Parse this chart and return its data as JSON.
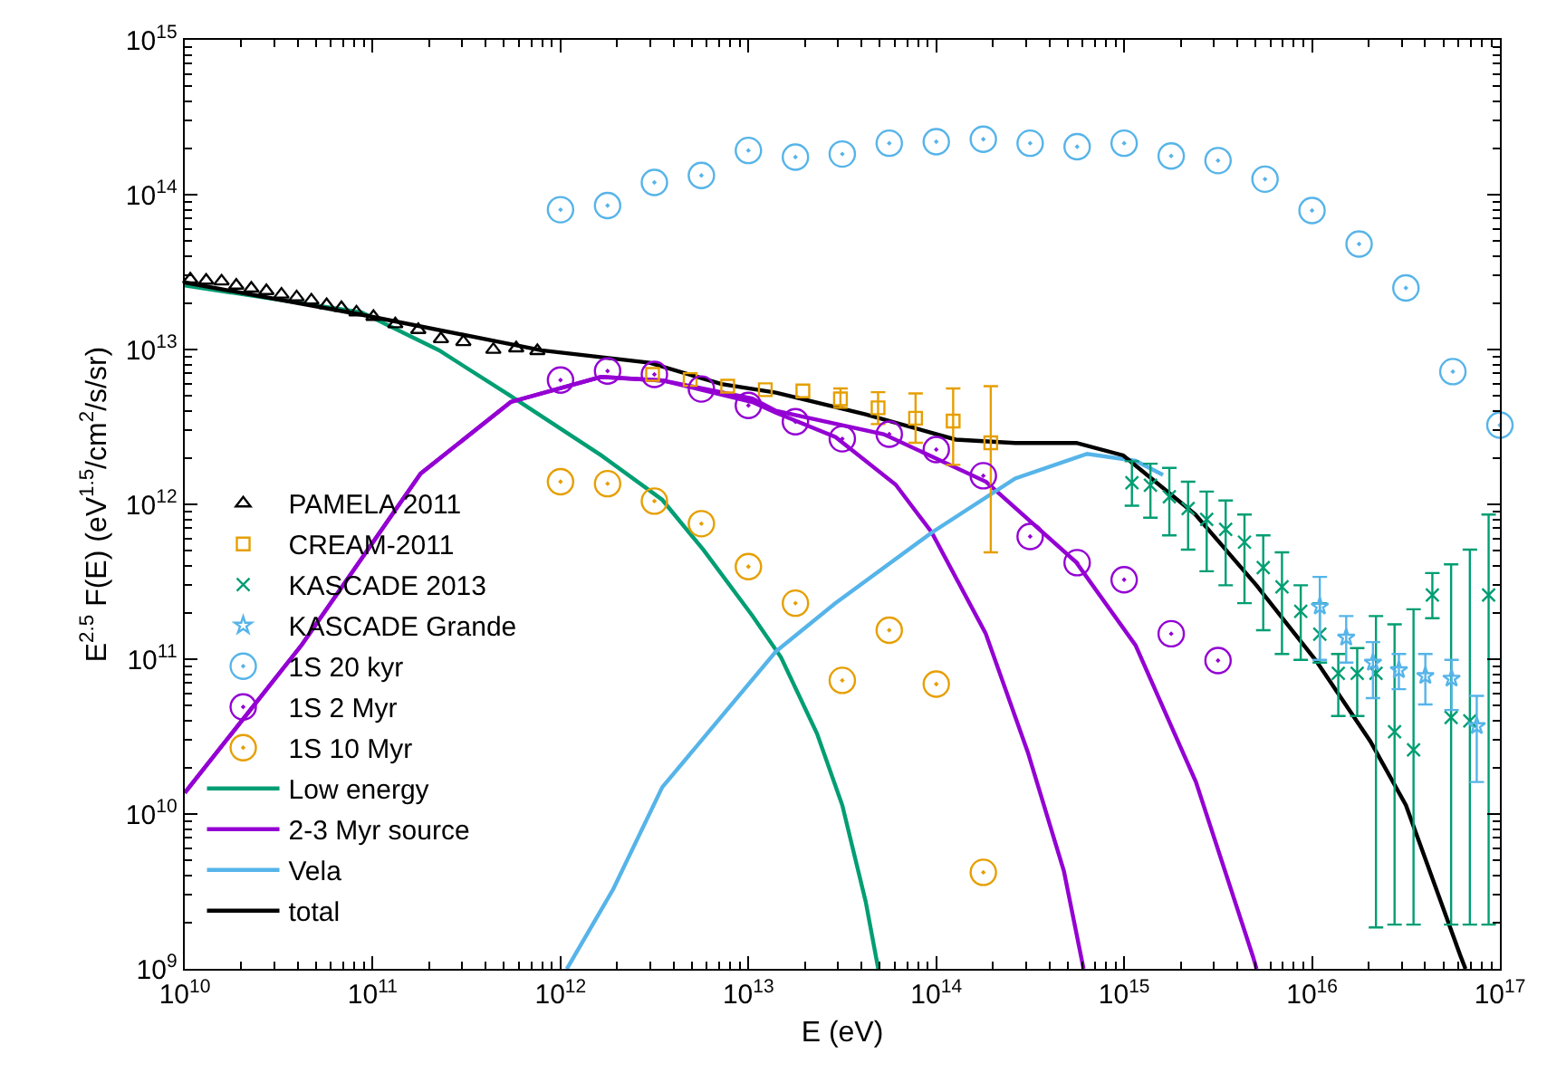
{
  "chart_data": {
    "type": "scatter",
    "xlabel": "E (eV)",
    "ylabel": "E$^{2.5}$ F(E) (eV$^{1.5}$/cm$^{2}$/s/sr)",
    "log": "xy",
    "grid": false,
    "legend": "bottom left",
    "xlim": [
      10000000000.0,
      1e+17
    ],
    "xticks": [
      {
        "value": 10000000000.0,
        "label": "10$^{10}$"
      },
      {
        "value": 100000000000.0,
        "label": "10$^{11}$"
      },
      {
        "value": 1000000000000.0,
        "label": "10$^{12}$"
      },
      {
        "value": 10000000000000.0,
        "label": "10$^{13}$"
      },
      {
        "value": 100000000000000.0,
        "label": "10$^{14}$"
      },
      {
        "value": 1000000000000000.0,
        "label": "10$^{15}$"
      },
      {
        "value": 1e+16,
        "label": "10$^{16}$"
      },
      {
        "value": 1e+17,
        "label": "10$^{17}$"
      }
    ],
    "ylim": [
      1000000000.0,
      1000000000000000.0
    ],
    "yticks": [
      {
        "value": 1000000000.0,
        "label": "10$^{9}$"
      },
      {
        "value": 10000000000.0,
        "label": "10$^{10}$"
      },
      {
        "value": 100000000000.0,
        "label": "10$^{11}$"
      },
      {
        "value": 1000000000000.0,
        "label": "10$^{12}$"
      },
      {
        "value": 10000000000000.0,
        "label": "10$^{13}$"
      },
      {
        "value": 100000000000000.0,
        "label": "10$^{14}$"
      },
      {
        "value": 1000000000000000.0,
        "label": "10$^{15}$"
      }
    ],
    "series": [
      {
        "type": "line",
        "name": "Low energy",
        "color": "#009e73",
        "marker": "none",
        "x": [
          10000000000.0,
          87100000000.0,
          225000000000.0,
          532000000000.0,
          1640000000000.0,
          3480000000000.0,
          5770000000000.0,
          10500000000000.0,
          14900000000000.0,
          23200000000000.0,
          31600000000000.0,
          42100000000000.0,
          49100000000000.0
        ],
        "values": [
          25900000000000.0,
          17400000000000.0,
          9900000000000.0,
          5090000000000.0,
          2080000000000.0,
          1070000000000.0,
          507000000000.0,
          191000000000.0,
          103000000000.0,
          33000000000.0,
          11400000000.0,
          2720000000.0,
          1000000000.0
        ]
      },
      {
        "type": "line",
        "name": "2-3 Myr source",
        "color": "#9400d3",
        "marker": "none",
        "x": [
          10000000000.0,
          42000000000.0,
          180000000000.0,
          543000000000.0,
          1640000000000.0,
          3480000000000.0,
          10500000000000.0,
          14000000000000.0,
          29100000000000.0,
          60800000000000.0,
          94400000000000.0,
          183000000000000.0,
          307000000000000.0,
          478000000000000.0,
          608000000000000.0
        ],
        "values": [
          13700000000.0,
          124000000000.0,
          1580000000000.0,
          4580000000000.0,
          6650000000000.0,
          6310000000000.0,
          4580000000000.0,
          3910000000000.0,
          2720000000000.0,
          1340000000000.0,
          661000000000.0,
          147000000000.0,
          25100000000.0,
          4280000000.0,
          1000000000.0
        ]
      },
      {
        "type": "line",
        "color": "#9400d3",
        "marker": "none",
        "x": [
          10000000000.0,
          42000000000.0,
          180000000000.0,
          543000000000.0,
          1640000000000.0,
          3480000000000.0,
          10500000000000.0,
          14000000000000.0,
          52500000000000.0,
          184000000000000.0,
          553000000000000.0,
          1150000000000000.0,
          2410000000000000.0,
          4850000000000000.0,
          5070000000000000.0
        ],
        "values": [
          13700000000.0,
          124000000000.0,
          1580000000000.0,
          4580000000000.0,
          6650000000000.0,
          6310000000000.0,
          4830000000000.0,
          4020000000000.0,
          2840000000000.0,
          1400000000000.0,
          425000000000.0,
          123000000000.0,
          16100000000.0,
          1200000000.0,
          1000000000.0
        ]
      },
      {
        "type": "line",
        "name": "Vela",
        "color": "#56b4e9",
        "marker": "none",
        "x": [
          1080000000000.0,
          1180000000000.0,
          1910000000000.0,
          3480000000000.0,
          14000000000000.0,
          28900000000000.0,
          95300000000000.0,
          263000000000000.0,
          635000000000000.0,
          1150000000000000.0,
          1610000000000000.0
        ],
        "values": [
          1000000000.0,
          1200000000.0,
          3280000000.0,
          14900000000.0,
          112000000000.0,
          229000000000.0,
          661000000000.0,
          1470000000000.0,
          2120000000000.0,
          1910000000000.0,
          1550000000000.0
        ]
      },
      {
        "type": "line",
        "name": "total",
        "color": "#000000",
        "marker": "none",
        "x": [
          10000000000.0,
          87100000000.0,
          791000000000.0,
          2980000000000.0,
          7190000000000.0,
          14000000000000.0,
          42100000000000.0,
          127000000000000.0,
          263000000000000.0,
          557000000000000.0,
          989000000000000.0,
          2390000000000000.0,
          5070000000000000.0,
          1.05e+16,
          2.04e+16,
          3.16e+16,
          6.14e+16,
          6.56e+16
        ],
        "values": [
          27100000000000.0,
          16800000000000.0,
          9890000000000.0,
          8220000000000.0,
          5980000000000.0,
          5270000000000.0,
          3810000000000.0,
          2620000000000.0,
          2490000000000.0,
          2490000000000.0,
          2070000000000.0,
          861000000000.0,
          299000000000.0,
          97900000000.0,
          29600000000.0,
          11400000000.0,
          1230000000.0,
          1000000000.0
        ]
      },
      {
        "name": "PAMELA 2011",
        "color": "#000000",
        "marker": "triangle",
        "x": [
          10700000000.0,
          13000000000.0,
          15700000000.0,
          18800000000.0,
          22600000000.0,
          27200000000.0,
          32700000000.0,
          39400000000.0,
          47200000000.0,
          56900000000.0,
          68200000000.0,
          82000000000.0,
          101000000000.0,
          132000000000.0,
          175000000000.0,
          231000000000.0,
          304000000000.0,
          439000000000.0,
          581000000000.0,
          753000000000.0
        ],
        "values": [
          28400000000000.0,
          27900000000000.0,
          27600000000000.0,
          25900000000000.0,
          24800000000000.0,
          23900000000000.0,
          22700000000000.0,
          21800000000000.0,
          20800000000000.0,
          19400000000000.0,
          18600000000000.0,
          17400000000000.0,
          16300000000000.0,
          14600000000000.0,
          13400000000000.0,
          11700000000000.0,
          11200000000000.0,
          9980000000000.0,
          10200000000000.0,
          9800000000000.0
        ]
      },
      {
        "name": "CREAM-2011",
        "color": "#e69f00",
        "marker": "square",
        "x": [
          3090000000000.0,
          4900000000000.0,
          7760000000000.0,
          12300000000000.0,
          19500000000000.0,
          30900000000000.0,
          49000000000000.0,
          77600000000000.0,
          123000000000000.0,
          195000000000000.0
        ],
        "values": [
          6900000000000.0,
          6400000000000.0,
          5800000000000.0,
          5500000000000.0,
          5400000000000.0,
          4800000000000.0,
          4200000000000.0,
          3600000000000.0,
          3450000000000.0,
          2500000000000.0
        ],
        "errors": [
          null,
          null,
          null,
          null,
          null,
          [
            4200000000000.0,
            5600000000000.0
          ],
          [
            3300000000000.0,
            5300000000000.0
          ],
          [
            2500000000000.0,
            5200000000000.0
          ],
          [
            1800000000000.0,
            5600000000000.0
          ],
          [
            490000000000.0,
            5800000000000.0
          ]
        ]
      },
      {
        "name": "KASCADE 2013",
        "color": "#009e73",
        "marker": "cross",
        "x": [
          1100000000000000.0,
          1380000000000000.0,
          1740000000000000.0,
          2190000000000000.0,
          2750000000000000.0,
          3470000000000000.0,
          4370000000000000.0,
          5500000000000000.0,
          6920000000000000.0,
          8710000000000000.0,
          1.1e+16,
          1.38e+16,
          1.74e+16,
          2.19e+16,
          2.75e+16,
          3.47e+16,
          4.37e+16,
          5.5e+16,
          6.92e+16,
          8.71e+16
        ],
        "values": [
          1380000000000.0,
          1330000000000.0,
          1120000000000.0,
          940000000000.0,
          800000000000.0,
          690000000000.0,
          570000000000.0,
          390000000000.0,
          293000000000.0,
          204000000000.0,
          145000000000.0,
          81000000000.0,
          81000000000.0,
          81000000000.0,
          34000000000.0,
          26000000000.0,
          260000000000.0,
          42000000000.0,
          40000000000.0,
          260000000000.0
        ],
        "errors": [
          [
            980000000000.0,
            1900000000000.0
          ],
          [
            820000000000.0,
            1830000000000.0
          ],
          [
            630000000000.0,
            1720000000000.0
          ],
          [
            510000000000.0,
            1400000000000.0
          ],
          [
            370000000000.0,
            1210000000000.0
          ],
          [
            300000000000.0,
            1060000000000.0
          ],
          [
            230000000000.0,
            860000000000.0
          ],
          [
            154000000000.0,
            630000000000.0
          ],
          [
            108000000000.0,
            490000000000.0
          ],
          [
            99000000000.0,
            300000000000.0
          ],
          [
            95000000000.0,
            230000000000.0
          ],
          [
            43000000000.0,
            108000000000.0
          ],
          [
            43000000000.0,
            118000000000.0
          ],
          [
            1850000000.0,
            190000000000.0
          ],
          [
            1930000000.0,
            168000000000.0
          ],
          [
            1930000000.0,
            210000000000.0
          ],
          [
            184000000000.0,
            360000000000.0
          ],
          [
            1930000000.0,
            410000000000.0
          ],
          [
            1930000000.0,
            510000000000.0
          ],
          [
            1930000000.0,
            860000000000.0
          ]
        ]
      },
      {
        "name": "KASCADE Grande",
        "color": "#56b4e9",
        "marker": "star",
        "x": [
          1.1e+16,
          1.52e+16,
          2.11e+16,
          2.9e+16,
          4.01e+16,
          5.53e+16,
          7.53e+16
        ],
        "values": [
          219000000000.0,
          138000000000.0,
          95000000000.0,
          85000000000.0,
          78000000000.0,
          75000000000.0,
          37000000000.0
        ],
        "errors": [
          [
            99000000000.0,
            340000000000.0
          ],
          [
            95000000000.0,
            190000000000.0
          ],
          [
            56000000000.0,
            129000000000.0
          ],
          [
            64000000000.0,
            108000000000.0
          ],
          [
            51000000000.0,
            108000000000.0
          ],
          [
            47000000000.0,
            99000000000.0
          ],
          [
            16100000000.0,
            58000000000.0
          ]
        ]
      },
      {
        "name": "1S 20 kyr",
        "color": "#56b4e9",
        "marker": "circle",
        "x": [
          1000000000000.0,
          1780000000000.0,
          3160000000000.0,
          5620000000000.0,
          10000000000000.0,
          17800000000000.0,
          31600000000000.0,
          56200000000000.0,
          100000000000000.0,
          178000000000000.0,
          316000000000000.0,
          562000000000000.0,
          1000000000000000.0,
          1780000000000000.0,
          3160000000000000.0,
          5620000000000000.0,
          1e+16,
          1.78e+16,
          3.16e+16,
          5.62e+16,
          1e+17
        ],
        "values": [
          80000000000000.0,
          85000000000000.0,
          120000000000000.0,
          133000000000000.0,
          193000000000000.0,
          175000000000000.0,
          183000000000000.0,
          215000000000000.0,
          220000000000000.0,
          228000000000000.0,
          215000000000000.0,
          204000000000000.0,
          215000000000000.0,
          178000000000000.0,
          166000000000000.0,
          126000000000000.0,
          79000000000000.0,
          48000000000000.0,
          25000000000000.0,
          7200000000000.0,
          3250000000000.0
        ]
      },
      {
        "name": "1S 2 Myr",
        "color": "#9400d3",
        "marker": "circle",
        "x": [
          1000000000000.0,
          1780000000000.0,
          3160000000000.0,
          5620000000000.0,
          10000000000000.0,
          17800000000000.0,
          31600000000000.0,
          56200000000000.0,
          100000000000000.0,
          178000000000000.0,
          316000000000000.0,
          562000000000000.0,
          1000000000000000.0,
          1780000000000000.0,
          3160000000000000.0
        ],
        "values": [
          6350000000000.0,
          7260000000000.0,
          6900000000000.0,
          5560000000000.0,
          4350000000000.0,
          3420000000000.0,
          2650000000000.0,
          2840000000000.0,
          2260000000000.0,
          1530000000000.0,
          620000000000.0,
          420000000000.0,
          326000000000.0,
          146000000000.0,
          98000000000.0
        ]
      },
      {
        "name": "1S 10 Myr",
        "color": "#e69f00",
        "marker": "circle",
        "x": [
          1000000000000.0,
          1780000000000.0,
          3160000000000.0,
          5620000000000.0,
          10000000000000.0,
          17800000000000.0,
          31600000000000.0,
          56200000000000.0,
          100000000000000.0,
          178000000000000.0
        ],
        "values": [
          1400000000000.0,
          1360000000000.0,
          1050000000000.0,
          750000000000.0,
          396000000000.0,
          230000000000.0,
          73000000000.0,
          154000000000.0,
          69000000000.0,
          4200000000.0
        ]
      }
    ]
  }
}
